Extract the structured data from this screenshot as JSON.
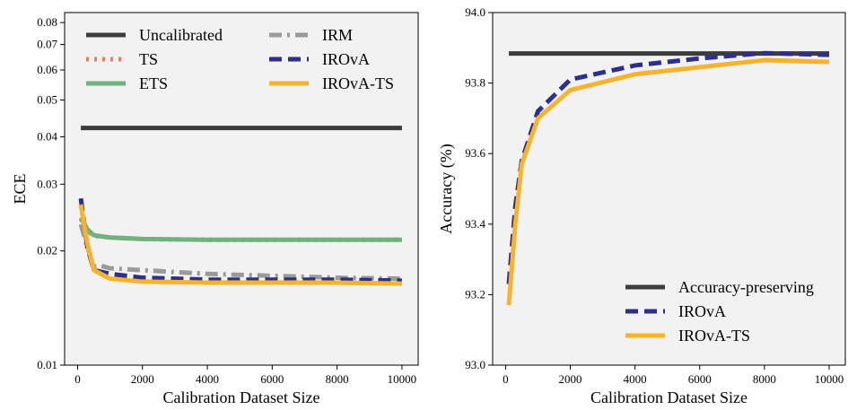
{
  "chart_data": [
    {
      "type": "line",
      "panel": "left",
      "xlabel": "Calibration Dataset Size",
      "ylabel": "ECE",
      "xlim": [
        -400,
        10500
      ],
      "ylim": [
        0.01,
        0.085
      ],
      "yscale": "log",
      "xticks": [
        0,
        2000,
        4000,
        6000,
        8000,
        10000
      ],
      "xtick_labels": [
        "0",
        "2000",
        "4000",
        "6000",
        "8000",
        "10000"
      ],
      "yticks": [
        0.01,
        0.02,
        0.03,
        0.04,
        0.05,
        0.06,
        0.07,
        0.08
      ],
      "ytick_labels": [
        "0.01",
        "0.02",
        "0.03",
        "0.04",
        "0.05",
        "0.06",
        "0.07",
        "0.08"
      ],
      "grid": false,
      "legend": "top, two columns",
      "series": [
        {
          "name": "Uncalibrated",
          "color": "#3c3c3c",
          "style": "solid",
          "x": [
            100,
            10000
          ],
          "y": [
            0.0422,
            0.0422
          ]
        },
        {
          "name": "TS",
          "color": "#f07b5f",
          "style": "dotted",
          "x": [
            100,
            300,
            500,
            1000,
            2000,
            4000,
            6000,
            8000,
            10000
          ],
          "y": [
            0.0243,
            0.0226,
            0.0219,
            0.0217,
            0.0215,
            0.0214,
            0.0214,
            0.0214,
            0.0214
          ]
        },
        {
          "name": "ETS",
          "color": "#6fb27d",
          "style": "solid",
          "x": [
            100,
            300,
            500,
            1000,
            2000,
            4000,
            6000,
            8000,
            10000
          ],
          "y": [
            0.0245,
            0.0228,
            0.022,
            0.0217,
            0.0215,
            0.0214,
            0.0214,
            0.0214,
            0.0214
          ]
        },
        {
          "name": "IRM",
          "color": "#9a9a9a",
          "style": "dashdot",
          "x": [
            100,
            300,
            500,
            700,
            1000,
            2000,
            4000,
            6000,
            8000,
            10000
          ],
          "y": [
            0.0235,
            0.0205,
            0.0182,
            0.0183,
            0.018,
            0.0178,
            0.0174,
            0.0172,
            0.017,
            0.0169
          ]
        },
        {
          "name": "IROvA",
          "color": "#2d2f8f",
          "style": "dashed",
          "x": [
            100,
            300,
            500,
            1000,
            2000,
            4000,
            6000,
            8000,
            10000
          ],
          "y": [
            0.0275,
            0.0205,
            0.0178,
            0.0174,
            0.017,
            0.0168,
            0.0168,
            0.0168,
            0.0167
          ]
        },
        {
          "name": "IROvA-TS",
          "color": "#f7b32b",
          "style": "solid",
          "x": [
            100,
            300,
            500,
            1000,
            2000,
            4000,
            6000,
            8000,
            10000
          ],
          "y": [
            0.0265,
            0.021,
            0.0178,
            0.0169,
            0.0166,
            0.0165,
            0.0165,
            0.0165,
            0.0164
          ]
        }
      ]
    },
    {
      "type": "line",
      "panel": "right",
      "xlabel": "Calibration Dataset Size",
      "ylabel": "Accuracy (%)",
      "xlim": [
        -400,
        10500
      ],
      "ylim": [
        93.0,
        94.0
      ],
      "yscale": "linear",
      "xticks": [
        0,
        2000,
        4000,
        6000,
        8000,
        10000
      ],
      "xtick_labels": [
        "0",
        "2000",
        "4000",
        "6000",
        "8000",
        "10000"
      ],
      "yticks": [
        93.0,
        93.2,
        93.4,
        93.6,
        93.8,
        94.0
      ],
      "ytick_labels": [
        "93.0",
        "93.2",
        "93.4",
        "93.6",
        "93.8",
        "94.0"
      ],
      "grid": false,
      "legend": "lower right",
      "series": [
        {
          "name": "Accuracy-preserving",
          "color": "#3c3c3c",
          "style": "solid",
          "x": [
            100,
            10000
          ],
          "y": [
            93.884,
            93.884
          ]
        },
        {
          "name": "IROvA",
          "color": "#2d2f8f",
          "style": "dashed",
          "x": [
            100,
            300,
            500,
            1000,
            2000,
            4000,
            6000,
            8000,
            10000
          ],
          "y": [
            93.23,
            93.45,
            93.58,
            93.72,
            93.81,
            93.85,
            93.87,
            93.885,
            93.88
          ]
        },
        {
          "name": "IROvA-TS",
          "color": "#f7b32b",
          "style": "solid",
          "x": [
            100,
            300,
            500,
            1000,
            2000,
            4000,
            6000,
            8000,
            10000
          ],
          "y": [
            93.17,
            93.4,
            93.57,
            93.7,
            93.78,
            93.825,
            93.845,
            93.865,
            93.86
          ]
        }
      ]
    }
  ]
}
